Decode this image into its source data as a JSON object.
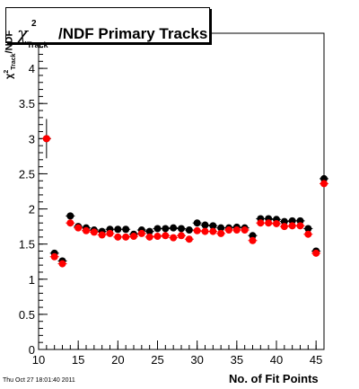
{
  "title": {
    "symbol": "χ",
    "sup": "2",
    "sub": "Track",
    "text": "/NDF Primary Tracks"
  },
  "ylabel": {
    "symbol": "χ",
    "sup": "2",
    "sub": "Track",
    "text": "/NDF"
  },
  "footer": {
    "timestamp": "Thu Oct 27 18:01:40 2011"
  },
  "chart_data": {
    "type": "scatter",
    "xlabel": "No. of Fit Points",
    "xlim": [
      10,
      46
    ],
    "ylim": [
      0,
      4.5
    ],
    "xticks": [
      10,
      15,
      20,
      25,
      30,
      35,
      40,
      45
    ],
    "yticks": [
      0,
      0.5,
      1,
      1.5,
      2,
      2.5,
      3,
      3.5,
      4
    ],
    "grid": false,
    "legend": "none",
    "x": [
      11,
      12,
      13,
      14,
      15,
      16,
      17,
      18,
      19,
      20,
      21,
      22,
      23,
      24,
      25,
      26,
      27,
      28,
      29,
      30,
      31,
      32,
      33,
      34,
      35,
      36,
      37,
      38,
      39,
      40,
      41,
      42,
      43,
      44,
      45,
      46
    ],
    "series": [
      {
        "color": "#000000",
        "values": [
          3.0,
          1.37,
          1.26,
          1.9,
          1.75,
          1.73,
          1.7,
          1.68,
          1.71,
          1.71,
          1.71,
          1.64,
          1.7,
          1.68,
          1.72,
          1.72,
          1.73,
          1.72,
          1.7,
          1.8,
          1.77,
          1.76,
          1.73,
          1.73,
          1.74,
          1.73,
          1.62,
          1.86,
          1.86,
          1.85,
          1.82,
          1.83,
          1.83,
          1.72,
          1.4,
          2.43
        ]
      },
      {
        "color": "#ff0000",
        "values": [
          3.0,
          1.32,
          1.22,
          1.8,
          1.73,
          1.69,
          1.67,
          1.63,
          1.65,
          1.6,
          1.6,
          1.61,
          1.65,
          1.6,
          1.61,
          1.62,
          1.59,
          1.62,
          1.57,
          1.69,
          1.68,
          1.68,
          1.65,
          1.7,
          1.7,
          1.7,
          1.55,
          1.8,
          1.8,
          1.79,
          1.75,
          1.76,
          1.76,
          1.64,
          1.37,
          2.36
        ]
      }
    ],
    "error_bars": [
      {
        "x": 11,
        "low": 2.72,
        "high": 3.28
      }
    ]
  }
}
